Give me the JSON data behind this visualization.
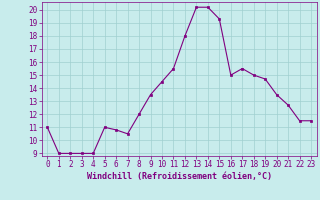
{
  "x": [
    0,
    1,
    2,
    3,
    4,
    5,
    6,
    7,
    8,
    9,
    10,
    11,
    12,
    13,
    14,
    15,
    16,
    17,
    18,
    19,
    20,
    21,
    22,
    23
  ],
  "y": [
    11,
    9,
    9,
    9,
    9,
    11,
    10.8,
    10.5,
    12,
    13.5,
    14.5,
    15.5,
    18,
    20.2,
    20.2,
    19.3,
    15,
    15.5,
    15,
    14.7,
    13.5,
    12.7,
    11.5,
    11.5
  ],
  "line_color": "#800080",
  "marker": "s",
  "marker_size": 2,
  "bg_color": "#c8ecec",
  "grid_color": "#a0d0d0",
  "xlabel": "Windchill (Refroidissement éolien,°C)",
  "xlabel_color": "#800080",
  "tick_color": "#800080",
  "ylim": [
    8.8,
    20.6
  ],
  "xlim": [
    -0.5,
    23.5
  ],
  "yticks": [
    9,
    10,
    11,
    12,
    13,
    14,
    15,
    16,
    17,
    18,
    19,
    20
  ],
  "xticks": [
    0,
    1,
    2,
    3,
    4,
    5,
    6,
    7,
    8,
    9,
    10,
    11,
    12,
    13,
    14,
    15,
    16,
    17,
    18,
    19,
    20,
    21,
    22,
    23
  ],
  "tick_fontsize": 5.5,
  "xlabel_fontsize": 6.0
}
